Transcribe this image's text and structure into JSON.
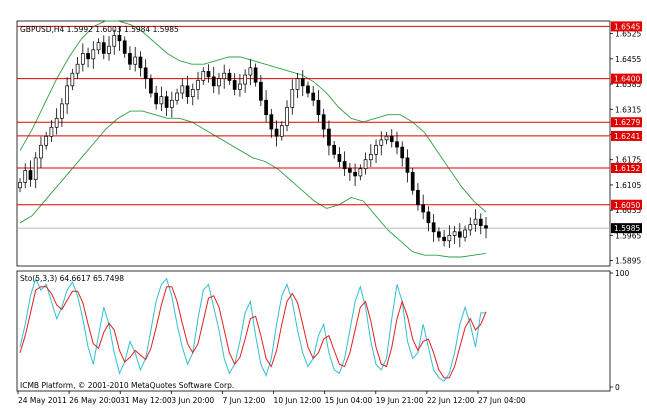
{
  "chart_data": {
    "type": "candlestick",
    "header": {
      "symbol": "GBPUSD,H4",
      "open": "1.5992",
      "high": "1.6003",
      "low": "1.5984",
      "close": "1.5985"
    },
    "price_axis": {
      "ticks": [
        "1.6525",
        "1.6455",
        "1.6385",
        "1.6315",
        "1.6245",
        "1.6175",
        "1.6105",
        "1.6035",
        "1.5965",
        "1.5895"
      ],
      "ylim": [
        1.588,
        1.656
      ],
      "current_price": "1.5985"
    },
    "levels": [
      {
        "value": 1.6545,
        "label": "1.6545"
      },
      {
        "value": 1.64,
        "label": "1.6400"
      },
      {
        "value": 1.6279,
        "label": "1.6279"
      },
      {
        "value": 1.6241,
        "label": "1.6241"
      },
      {
        "value": 1.6152,
        "label": "1.6152"
      },
      {
        "value": 1.605,
        "label": "1.6050"
      }
    ],
    "time_labels": [
      "24 May 2011",
      "26 May 20:00",
      "31 May 12:00",
      "3 Jun 20:00",
      "7 Jun 12:00",
      "10 Jun 12:00",
      "15 Jun 04:00",
      "19 Jun 21:00",
      "22 Jun 12:00",
      "27 Jun 04:00"
    ],
    "closes": [
      1.6112,
      1.6145,
      1.612,
      1.618,
      1.6215,
      1.624,
      1.6265,
      1.629,
      1.633,
      1.638,
      1.6415,
      1.644,
      1.647,
      1.6455,
      1.648,
      1.65,
      1.647,
      1.649,
      1.652,
      1.6505,
      1.647,
      1.644,
      1.646,
      1.643,
      1.64,
      1.636,
      1.633,
      1.635,
      1.632,
      1.634,
      1.636,
      1.638,
      1.635,
      1.637,
      1.6395,
      1.642,
      1.6405,
      1.638,
      1.64,
      1.6415,
      1.6395,
      1.637,
      1.6385,
      1.641,
      1.643,
      1.639,
      1.634,
      1.63,
      1.626,
      1.624,
      1.627,
      1.632,
      1.637,
      1.64,
      1.638,
      1.636,
      1.634,
      1.63,
      1.626,
      1.6215,
      1.619,
      1.617,
      1.615,
      1.614,
      1.613,
      1.615,
      1.6175,
      1.619,
      1.6215,
      1.623,
      1.624,
      1.6225,
      1.621,
      1.618,
      1.614,
      1.609,
      1.605,
      1.603,
      1.6,
      1.5975,
      1.596,
      1.595,
      1.5965,
      1.5975,
      1.596,
      1.598,
      1.5995,
      1.601,
      1.5992,
      1.5985
    ],
    "bands": {
      "upper": [
        1.62,
        1.626,
        1.633,
        1.64,
        1.646,
        1.651,
        1.6545,
        1.656,
        1.656,
        1.655,
        1.653,
        1.65,
        1.647,
        1.645,
        1.644,
        1.644,
        1.645,
        1.646,
        1.646,
        1.645,
        1.644,
        1.643,
        1.642,
        1.641,
        1.639,
        1.636,
        1.632,
        1.629,
        1.628,
        1.629,
        1.63,
        1.63,
        1.628,
        1.625,
        1.62,
        1.615,
        1.61,
        1.606,
        1.603
      ],
      "lower": [
        1.6,
        1.602,
        1.606,
        1.61,
        1.614,
        1.618,
        1.622,
        1.626,
        1.629,
        1.631,
        1.631,
        1.63,
        1.629,
        1.629,
        1.628,
        1.626,
        1.624,
        1.622,
        1.62,
        1.618,
        1.617,
        1.615,
        1.612,
        1.609,
        1.606,
        1.604,
        1.605,
        1.607,
        1.606,
        1.602,
        1.598,
        1.595,
        1.592,
        1.591,
        1.591,
        1.5905,
        1.5905,
        1.591,
        1.5915
      ]
    },
    "stochastic": {
      "header": "Sto(5,3,3) 64.6617 65.7498",
      "ticks": [
        "100",
        "0"
      ],
      "ylim": [
        0,
        100
      ],
      "main": [
        35,
        55,
        80,
        95,
        85,
        90,
        75,
        60,
        70,
        85,
        92,
        80,
        60,
        35,
        20,
        45,
        70,
        55,
        30,
        12,
        22,
        40,
        30,
        15,
        25,
        50,
        75,
        90,
        95,
        80,
        55,
        35,
        20,
        30,
        60,
        85,
        90,
        70,
        50,
        25,
        12,
        20,
        40,
        65,
        75,
        45,
        20,
        10,
        25,
        55,
        80,
        90,
        75,
        50,
        30,
        18,
        25,
        45,
        55,
        30,
        15,
        12,
        25,
        50,
        75,
        88,
        70,
        40,
        20,
        15,
        25,
        60,
        90,
        75,
        40,
        25,
        30,
        55,
        35,
        15,
        8,
        5,
        12,
        30,
        55,
        70,
        55,
        35,
        65,
        65
      ],
      "signal": [
        30,
        45,
        65,
        85,
        88,
        88,
        82,
        72,
        68,
        76,
        84,
        84,
        74,
        55,
        38,
        34,
        48,
        56,
        50,
        32,
        22,
        26,
        32,
        28,
        24,
        34,
        52,
        72,
        88,
        88,
        75,
        56,
        38,
        30,
        38,
        58,
        78,
        80,
        70,
        50,
        30,
        20,
        26,
        42,
        60,
        62,
        45,
        25,
        18,
        32,
        55,
        75,
        82,
        74,
        55,
        35,
        25,
        30,
        42,
        45,
        32,
        20,
        18,
        30,
        50,
        70,
        75,
        58,
        35,
        20,
        18,
        35,
        60,
        75,
        62,
        42,
        32,
        40,
        42,
        30,
        15,
        8,
        8,
        18,
        35,
        52,
        60,
        50,
        55,
        66
      ]
    },
    "footer": "ICMB Platform, © 2001-2010 MetaQuotes Software Corp."
  }
}
